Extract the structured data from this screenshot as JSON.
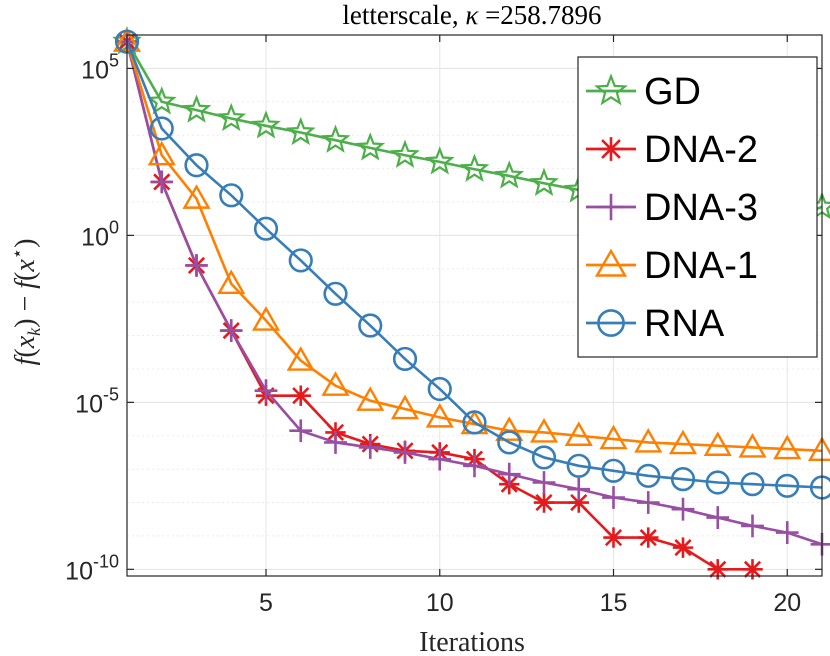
{
  "chart_data": {
    "type": "line",
    "title": "letterscale, κ =258.7896",
    "title_prefix": "letterscale, ",
    "title_kappa": "κ",
    "title_value": " =258.7896",
    "xlabel": "Iterations",
    "ylabel": "f(x_k) − f(x*)",
    "ylabel_parts": {
      "f1": "f",
      "open1": "(",
      "x1": "x",
      "k": "k",
      "close1": ")",
      "minus": " − ",
      "f2": "f",
      "open2": "(",
      "x2": "x",
      "star": "⋆",
      "close2": ")"
    },
    "yscale": "log",
    "xlim": [
      1,
      21
    ],
    "ylim_log10": [
      -10.2,
      6.0
    ],
    "xticks": [
      5,
      10,
      15,
      20
    ],
    "xtick_labels": [
      "5",
      "10",
      "15",
      "20"
    ],
    "yticks_log10": [
      5,
      0,
      -5,
      -10
    ],
    "ytick_labels": [
      {
        "base": "10",
        "exp": "5"
      },
      {
        "base": "10",
        "exp": "0"
      },
      {
        "base": "10",
        "exp": "-5"
      },
      {
        "base": "10",
        "exp": "-10"
      }
    ],
    "grid": true,
    "legend_position": "top-right",
    "series": [
      {
        "name": "GD",
        "color": "#4daf4a",
        "marker": "star",
        "x": [
          1,
          2,
          3,
          4,
          5,
          6,
          7,
          8,
          9,
          10,
          11,
          12,
          13,
          14,
          15,
          16,
          17,
          18,
          19,
          20,
          21
        ],
        "log10_values": [
          5.8,
          4.0,
          3.75,
          3.5,
          3.28,
          3.08,
          2.85,
          2.62,
          2.4,
          2.2,
          1.98,
          1.78,
          1.56,
          1.36,
          1.18,
          1.06,
          0.94,
          0.8,
          0.7,
          0.5,
          0.85
        ]
      },
      {
        "name": "DNA-2",
        "color": "#e41a1c",
        "marker": "asterisk",
        "x": [
          1,
          2,
          3,
          4,
          5,
          6,
          7,
          8,
          9,
          10,
          11,
          12,
          13,
          14,
          15,
          16,
          17,
          18,
          19
        ],
        "log10_values": [
          5.8,
          1.6,
          -0.9,
          -2.85,
          -4.8,
          -4.8,
          -5.9,
          -6.25,
          -6.45,
          -6.5,
          -6.7,
          -7.45,
          -8.0,
          -8.0,
          -9.05,
          -9.05,
          -9.35,
          -10.0,
          -10.0
        ]
      },
      {
        "name": "DNA-3",
        "color": "#984ea3",
        "marker": "plus",
        "x": [
          1,
          2,
          3,
          4,
          5,
          6,
          7,
          8,
          9,
          10,
          11,
          12,
          13,
          14,
          15,
          16,
          17,
          18,
          19,
          20,
          21
        ],
        "log10_values": [
          5.8,
          1.6,
          -0.9,
          -2.85,
          -4.65,
          -5.85,
          -6.2,
          -6.35,
          -6.5,
          -6.7,
          -6.9,
          -7.15,
          -7.4,
          -7.6,
          -7.85,
          -8.0,
          -8.2,
          -8.45,
          -8.7,
          -8.9,
          -9.25
        ]
      },
      {
        "name": "DNA-1",
        "color": "#ff7f00",
        "marker": "triangle",
        "x": [
          1,
          2,
          3,
          4,
          5,
          6,
          7,
          8,
          9,
          10,
          11,
          12,
          13,
          14,
          15,
          16,
          17,
          18,
          19,
          20,
          21
        ],
        "log10_values": [
          5.8,
          2.4,
          1.1,
          -1.45,
          -2.55,
          -3.75,
          -4.5,
          -4.95,
          -5.2,
          -5.45,
          -5.65,
          -5.85,
          -5.9,
          -6.0,
          -6.1,
          -6.2,
          -6.25,
          -6.3,
          -6.35,
          -6.4,
          -6.45
        ]
      },
      {
        "name": "RNA",
        "color": "#377eb8",
        "marker": "circle",
        "x": [
          1,
          2,
          3,
          4,
          5,
          6,
          7,
          8,
          9,
          10,
          11,
          12,
          13,
          14,
          15,
          16,
          17,
          18,
          19,
          20,
          21
        ],
        "log10_values": [
          5.8,
          3.2,
          2.1,
          1.2,
          0.2,
          -0.75,
          -1.75,
          -2.7,
          -3.7,
          -4.6,
          -5.6,
          -6.2,
          -6.65,
          -6.9,
          -7.05,
          -7.2,
          -7.3,
          -7.4,
          -7.45,
          -7.5,
          -7.55
        ]
      }
    ]
  }
}
